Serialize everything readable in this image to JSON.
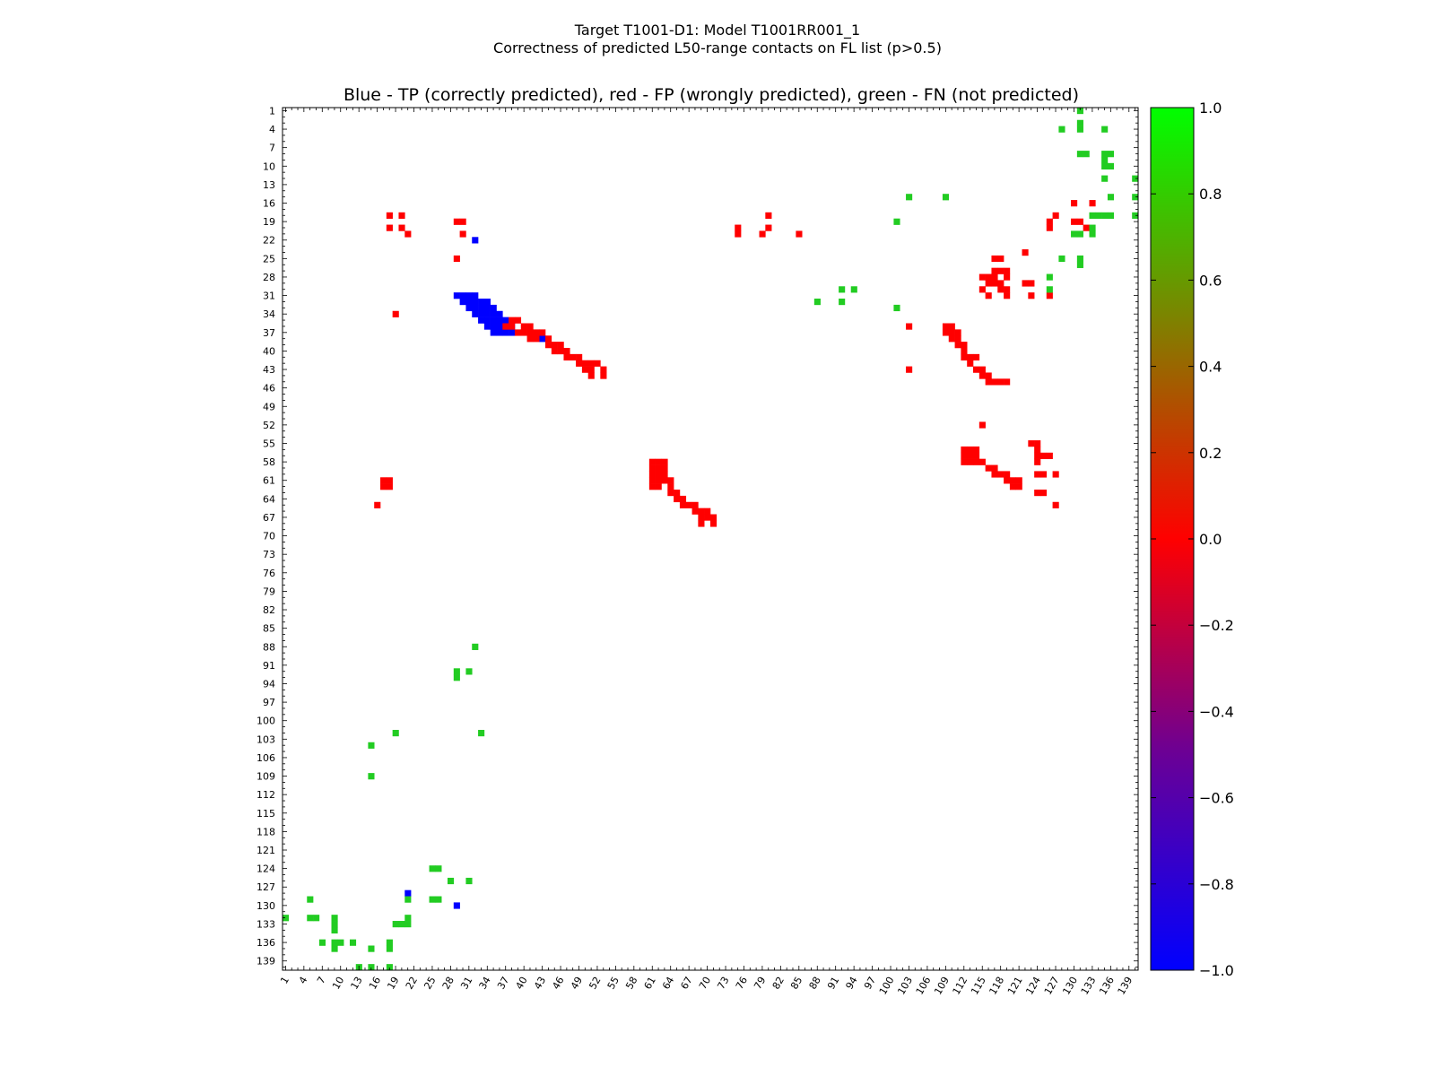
{
  "chart_data": {
    "type": "heatmap",
    "title_line1": "Target T1001-D1: Model T1001RR001_1",
    "title_line2": "Correctness of predicted L50-range contacts on FL list (p>0.5)",
    "subtitle": "Blue - TP (correctly predicted), red - FP (wrongly predicted), green - FN (not predicted)",
    "xlabel": "",
    "ylabel": "",
    "x_range": [
      1,
      140
    ],
    "y_range": [
      1,
      140
    ],
    "tick_labels": [
      "1",
      "4",
      "7",
      "10",
      "13",
      "16",
      "19",
      "22",
      "25",
      "28",
      "31",
      "34",
      "37",
      "40",
      "43",
      "46",
      "49",
      "52",
      "55",
      "58",
      "61",
      "64",
      "67",
      "70",
      "73",
      "76",
      "79",
      "82",
      "85",
      "88",
      "91",
      "94",
      "97",
      "100",
      "103",
      "106",
      "109",
      "112",
      "115",
      "118",
      "121",
      "124",
      "127",
      "130",
      "133",
      "136",
      "139"
    ],
    "colorbar": {
      "range": [
        -1.0,
        1.0
      ],
      "tick_labels": [
        "1.0",
        "0.8",
        "0.6",
        "0.4",
        "0.2",
        "0.0",
        "−0.2",
        "−0.4",
        "−0.6",
        "−0.8",
        "−1.0"
      ],
      "colors": [
        "#00ff00",
        "#ff0000",
        "#0000ff"
      ]
    },
    "legend": {
      "tp": {
        "value": -1,
        "color": "#0000ff"
      },
      "fp": {
        "value": 0,
        "color": "#ff0000"
      },
      "fn": {
        "value": 1,
        "color": "#22cc22"
      }
    },
    "points": {
      "tp": [
        [
          32,
          22
        ],
        [
          29,
          31
        ],
        [
          30,
          31
        ],
        [
          31,
          31
        ],
        [
          32,
          31
        ],
        [
          30,
          32
        ],
        [
          31,
          32
        ],
        [
          32,
          32
        ],
        [
          33,
          32
        ],
        [
          34,
          32
        ],
        [
          31,
          33
        ],
        [
          32,
          33
        ],
        [
          33,
          33
        ],
        [
          34,
          33
        ],
        [
          35,
          33
        ],
        [
          32,
          34
        ],
        [
          33,
          34
        ],
        [
          34,
          34
        ],
        [
          35,
          34
        ],
        [
          36,
          34
        ],
        [
          33,
          35
        ],
        [
          34,
          35
        ],
        [
          35,
          35
        ],
        [
          36,
          35
        ],
        [
          37,
          35
        ],
        [
          34,
          36
        ],
        [
          35,
          36
        ],
        [
          36,
          36
        ],
        [
          37,
          36
        ],
        [
          38,
          36
        ],
        [
          35,
          37
        ],
        [
          36,
          37
        ],
        [
          37,
          37
        ],
        [
          38,
          37
        ],
        [
          43,
          38
        ],
        [
          21,
          128
        ],
        [
          29,
          130
        ]
      ],
      "fp": [
        [
          18,
          18
        ],
        [
          20,
          18
        ],
        [
          18,
          20
        ],
        [
          20,
          20
        ],
        [
          19,
          34
        ],
        [
          29,
          25
        ],
        [
          17,
          61
        ],
        [
          18,
          61
        ],
        [
          17,
          62
        ],
        [
          18,
          62
        ],
        [
          16,
          65
        ],
        [
          30,
          19
        ],
        [
          29,
          19
        ],
        [
          30,
          21
        ],
        [
          21,
          21
        ],
        [
          38,
          35
        ],
        [
          37,
          36
        ],
        [
          38,
          36
        ],
        [
          39,
          35
        ],
        [
          39,
          37
        ],
        [
          40,
          36
        ],
        [
          40,
          37
        ],
        [
          41,
          36
        ],
        [
          41,
          37
        ],
        [
          41,
          38
        ],
        [
          42,
          37
        ],
        [
          42,
          38
        ],
        [
          43,
          37
        ],
        [
          44,
          38
        ],
        [
          44,
          39
        ],
        [
          45,
          39
        ],
        [
          45,
          40
        ],
        [
          46,
          39
        ],
        [
          46,
          40
        ],
        [
          47,
          40
        ],
        [
          47,
          41
        ],
        [
          48,
          41
        ],
        [
          49,
          41
        ],
        [
          49,
          42
        ],
        [
          50,
          42
        ],
        [
          51,
          42
        ],
        [
          50,
          43
        ],
        [
          51,
          43
        ],
        [
          51,
          44
        ],
        [
          52,
          42
        ],
        [
          53,
          43
        ],
        [
          53,
          44
        ],
        [
          61,
          58
        ],
        [
          62,
          58
        ],
        [
          63,
          58
        ],
        [
          61,
          59
        ],
        [
          62,
          59
        ],
        [
          63,
          59
        ],
        [
          61,
          60
        ],
        [
          62,
          60
        ],
        [
          63,
          60
        ],
        [
          61,
          61
        ],
        [
          62,
          61
        ],
        [
          63,
          61
        ],
        [
          61,
          62
        ],
        [
          62,
          62
        ],
        [
          64,
          61
        ],
        [
          64,
          62
        ],
        [
          64,
          63
        ],
        [
          65,
          63
        ],
        [
          65,
          64
        ],
        [
          66,
          64
        ],
        [
          66,
          65
        ],
        [
          67,
          65
        ],
        [
          68,
          65
        ],
        [
          68,
          66
        ],
        [
          69,
          66
        ],
        [
          70,
          66
        ],
        [
          69,
          67
        ],
        [
          70,
          67
        ],
        [
          71,
          67
        ],
        [
          69,
          68
        ],
        [
          71,
          68
        ],
        [
          75,
          20
        ],
        [
          75,
          21
        ],
        [
          79,
          21
        ],
        [
          80,
          18
        ],
        [
          80,
          20
        ],
        [
          85,
          21
        ],
        [
          103,
          36
        ],
        [
          103,
          43
        ],
        [
          109,
          36
        ],
        [
          109,
          37
        ],
        [
          110,
          36
        ],
        [
          110,
          37
        ],
        [
          110,
          38
        ],
        [
          111,
          37
        ],
        [
          111,
          38
        ],
        [
          111,
          39
        ],
        [
          112,
          39
        ],
        [
          112,
          40
        ],
        [
          112,
          41
        ],
        [
          113,
          41
        ],
        [
          113,
          42
        ],
        [
          114,
          41
        ],
        [
          114,
          43
        ],
        [
          115,
          43
        ],
        [
          115,
          44
        ],
        [
          116,
          44
        ],
        [
          116,
          45
        ],
        [
          117,
          45
        ],
        [
          118,
          45
        ],
        [
          119,
          45
        ],
        [
          115,
          52
        ],
        [
          112,
          56
        ],
        [
          113,
          56
        ],
        [
          114,
          56
        ],
        [
          112,
          57
        ],
        [
          113,
          57
        ],
        [
          114,
          57
        ],
        [
          112,
          58
        ],
        [
          113,
          58
        ],
        [
          114,
          58
        ],
        [
          115,
          58
        ],
        [
          116,
          59
        ],
        [
          117,
          59
        ],
        [
          117,
          60
        ],
        [
          118,
          60
        ],
        [
          119,
          60
        ],
        [
          119,
          61
        ],
        [
          120,
          61
        ],
        [
          121,
          61
        ],
        [
          120,
          62
        ],
        [
          121,
          62
        ],
        [
          124,
          60
        ],
        [
          125,
          60
        ],
        [
          124,
          63
        ],
        [
          125,
          63
        ],
        [
          127,
          60
        ],
        [
          127,
          65
        ],
        [
          123,
          55
        ],
        [
          124,
          55
        ],
        [
          124,
          56
        ],
        [
          124,
          57
        ],
        [
          125,
          57
        ],
        [
          126,
          57
        ],
        [
          124,
          58
        ],
        [
          117,
          25
        ],
        [
          118,
          25
        ],
        [
          117,
          27
        ],
        [
          118,
          27
        ],
        [
          119,
          27
        ],
        [
          115,
          28
        ],
        [
          116,
          28
        ],
        [
          117,
          28
        ],
        [
          119,
          28
        ],
        [
          116,
          29
        ],
        [
          117,
          29
        ],
        [
          118,
          29
        ],
        [
          115,
          30
        ],
        [
          118,
          30
        ],
        [
          119,
          30
        ],
        [
          116,
          31
        ],
        [
          119,
          31
        ],
        [
          122,
          24
        ],
        [
          122,
          29
        ],
        [
          123,
          29
        ],
        [
          123,
          31
        ],
        [
          126,
          31
        ],
        [
          126,
          20
        ],
        [
          126,
          19
        ],
        [
          127,
          18
        ],
        [
          130,
          16
        ],
        [
          133,
          16
        ],
        [
          130,
          19
        ],
        [
          131,
          19
        ],
        [
          132,
          20
        ]
      ],
      "fn": [
        [
          131,
          1
        ],
        [
          131,
          3
        ],
        [
          131,
          4
        ],
        [
          128,
          4
        ],
        [
          135,
          4
        ],
        [
          131,
          8
        ],
        [
          132,
          8
        ],
        [
          135,
          8
        ],
        [
          136,
          8
        ],
        [
          135,
          9
        ],
        [
          135,
          10
        ],
        [
          136,
          10
        ],
        [
          135,
          12
        ],
        [
          140,
          12
        ],
        [
          103,
          15
        ],
        [
          109,
          15
        ],
        [
          136,
          15
        ],
        [
          140,
          15
        ],
        [
          101,
          19
        ],
        [
          133,
          18
        ],
        [
          134,
          18
        ],
        [
          135,
          18
        ],
        [
          136,
          18
        ],
        [
          140,
          18
        ],
        [
          130,
          21
        ],
        [
          131,
          21
        ],
        [
          133,
          20
        ],
        [
          133,
          21
        ],
        [
          128,
          25
        ],
        [
          131,
          25
        ],
        [
          131,
          26
        ],
        [
          126,
          28
        ],
        [
          126,
          30
        ],
        [
          88,
          32
        ],
        [
          92,
          30
        ],
        [
          94,
          30
        ],
        [
          92,
          32
        ],
        [
          101,
          33
        ],
        [
          32,
          88
        ],
        [
          29,
          92
        ],
        [
          31,
          92
        ],
        [
          29,
          93
        ],
        [
          19,
          102
        ],
        [
          15,
          104
        ],
        [
          33,
          102
        ],
        [
          15,
          109
        ],
        [
          25,
          124
        ],
        [
          26,
          124
        ],
        [
          28,
          126
        ],
        [
          31,
          126
        ],
        [
          5,
          129
        ],
        [
          25,
          129
        ],
        [
          26,
          129
        ],
        [
          21,
          129
        ],
        [
          1,
          132
        ],
        [
          5,
          132
        ],
        [
          6,
          132
        ],
        [
          9,
          132
        ],
        [
          9,
          133
        ],
        [
          9,
          134
        ],
        [
          19,
          133
        ],
        [
          20,
          133
        ],
        [
          21,
          133
        ],
        [
          21,
          132
        ],
        [
          7,
          136
        ],
        [
          9,
          136
        ],
        [
          10,
          136
        ],
        [
          9,
          137
        ],
        [
          12,
          136
        ],
        [
          15,
          137
        ],
        [
          18,
          136
        ],
        [
          18,
          137
        ],
        [
          13,
          140
        ],
        [
          15,
          140
        ],
        [
          18,
          140
        ]
      ]
    }
  }
}
